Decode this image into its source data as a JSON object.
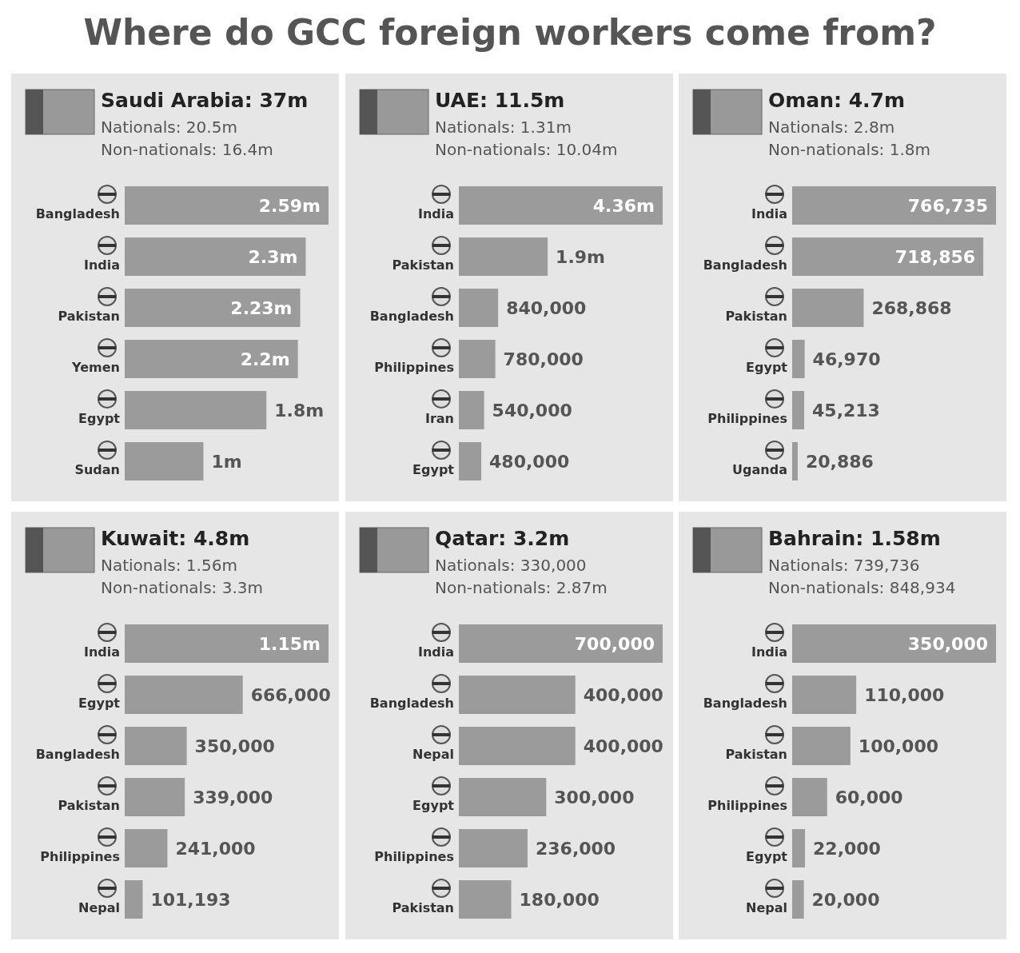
{
  "chart_data": [
    {
      "type": "other",
      "title": "Where do GCC foreign workers come from?"
    },
    {
      "type": "bar",
      "orientation": "horizontal",
      "title": "Saudi Arabia: 37m",
      "annotations": [
        "Nationals: 20.5m",
        "Non-nationals: 16.4m"
      ],
      "categories": [
        "Bangladesh",
        "India",
        "Pakistan",
        "Yemen",
        "Egypt",
        "Sudan"
      ],
      "values": [
        2590000,
        2300000,
        2230000,
        2200000,
        1800000,
        1000000
      ],
      "value_labels": [
        "2.59m",
        "2.3m",
        "2.23m",
        "2.2m",
        "1.8m",
        "1m"
      ],
      "color": "#9b9b9b"
    },
    {
      "type": "bar",
      "orientation": "horizontal",
      "title": "UAE: 11.5m",
      "annotations": [
        "Nationals: 1.31m",
        "Non-nationals: 10.04m"
      ],
      "categories": [
        "India",
        "Pakistan",
        "Bangladesh",
        "Philippines",
        "Iran",
        "Egypt"
      ],
      "values": [
        4360000,
        1900000,
        840000,
        780000,
        540000,
        480000
      ],
      "value_labels": [
        "4.36m",
        "1.9m",
        "840,000",
        "780,000",
        "540,000",
        "480,000"
      ],
      "color": "#9b9b9b"
    },
    {
      "type": "bar",
      "orientation": "horizontal",
      "title": "Oman: 4.7m",
      "annotations": [
        "Nationals: 2.8m",
        "Non-nationals: 1.8m"
      ],
      "categories": [
        "India",
        "Bangladesh",
        "Pakistan",
        "Egypt",
        "Philippines",
        "Uganda"
      ],
      "values": [
        766735,
        718856,
        268868,
        46970,
        45213,
        20886
      ],
      "value_labels": [
        "766,735",
        "718,856",
        "268,868",
        "46,970",
        "45,213",
        "20,886"
      ],
      "color": "#9b9b9b"
    },
    {
      "type": "bar",
      "orientation": "horizontal",
      "title": "Kuwait: 4.8m",
      "annotations": [
        "Nationals: 1.56m",
        "Non-nationals: 3.3m"
      ],
      "categories": [
        "India",
        "Egypt",
        "Bangladesh",
        "Pakistan",
        "Philippines",
        "Nepal"
      ],
      "values": [
        1150000,
        666000,
        350000,
        339000,
        241000,
        101193
      ],
      "value_labels": [
        "1.15m",
        "666,000",
        "350,000",
        "339,000",
        "241,000",
        "101,193"
      ],
      "color": "#9b9b9b"
    },
    {
      "type": "bar",
      "orientation": "horizontal",
      "title": "Qatar: 3.2m",
      "annotations": [
        "Nationals: 330,000",
        "Non-nationals: 2.87m"
      ],
      "categories": [
        "India",
        "Bangladesh",
        "Nepal",
        "Egypt",
        "Philippines",
        "Pakistan"
      ],
      "values": [
        700000,
        400000,
        400000,
        300000,
        236000,
        180000
      ],
      "value_labels": [
        "700,000",
        "400,000",
        "400,000",
        "300,000",
        "236,000",
        "180,000"
      ],
      "color": "#9b9b9b"
    },
    {
      "type": "bar",
      "orientation": "horizontal",
      "title": "Bahrain: 1.58m",
      "annotations": [
        "Nationals: 739,736",
        "Non-nationals: 848,934"
      ],
      "categories": [
        "India",
        "Bangladesh",
        "Pakistan",
        "Philippines",
        "Egypt",
        "Nepal"
      ],
      "values": [
        350000,
        110000,
        100000,
        60000,
        22000,
        20000
      ],
      "value_labels": [
        "350,000",
        "110,000",
        "100,000",
        "60,000",
        "22,000",
        "20,000"
      ],
      "color": "#9b9b9b"
    }
  ]
}
